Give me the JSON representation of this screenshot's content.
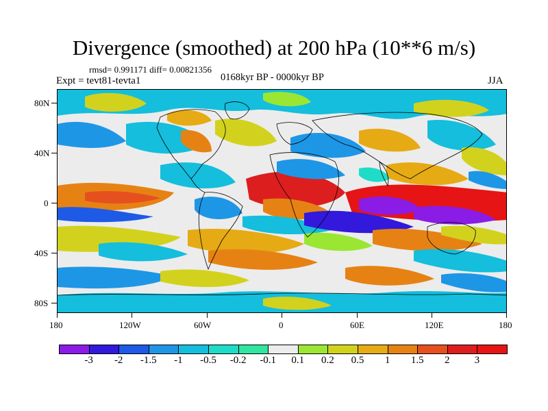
{
  "title": "Divergence (smoothed) at 200 hPa (10**6 m/s)",
  "stats": "rmsd= 0.991171 diff= 0.00821356",
  "experiment": "Expt = tevt81-tevta1",
  "period": "0168kyr BP - 0000kyr BP",
  "season": "JJA",
  "lat_labels": [
    "80N",
    "40N",
    "0",
    "40S",
    "80S"
  ],
  "lon_labels": [
    "180",
    "120W",
    "60W",
    "0",
    "60E",
    "120E",
    "180"
  ],
  "colorbar": {
    "labels": [
      "-3",
      "-2",
      "-1.5",
      "-1",
      "-0.5",
      "-0.2",
      "-0.1",
      "0.1",
      "0.2",
      "0.5",
      "1",
      "1.5",
      "2",
      "3"
    ],
    "colors": [
      "#8a1ce6",
      "#3219dc",
      "#1e5ae6",
      "#1e96e6",
      "#14bedc",
      "#1edcc8",
      "#32e6a0",
      "#ececec",
      "#9be632",
      "#d2d21e",
      "#e6aa14",
      "#e68214",
      "#e6501e",
      "#dc1e1e",
      "#e61414"
    ]
  },
  "map_fields": {
    "background": "#ececec",
    "ocean_note": "Field colours correspond to the colour bar classes"
  }
}
